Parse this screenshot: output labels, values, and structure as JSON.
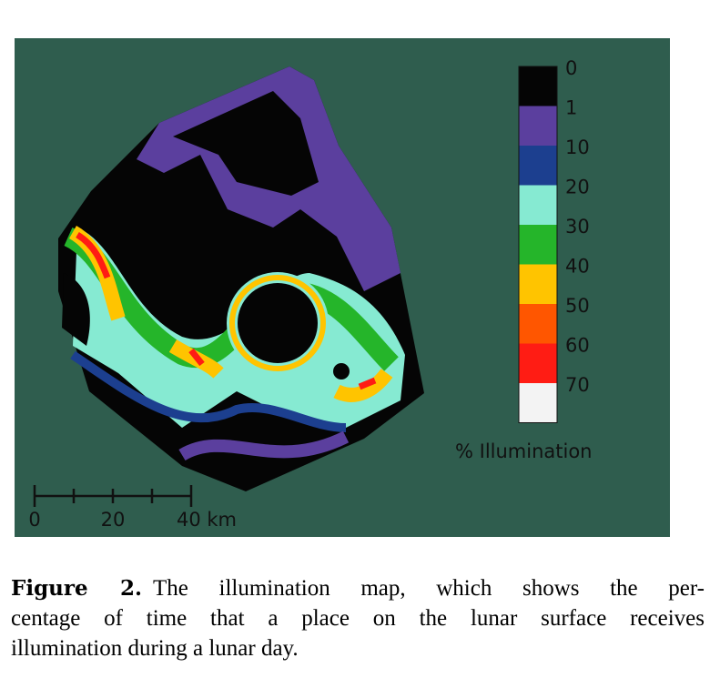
{
  "figure": {
    "colorbar": [
      {
        "label": "0",
        "color": "#050505"
      },
      {
        "label": "1",
        "color": "#5b3f9e"
      },
      {
        "label": "10",
        "color": "#1c3f8f"
      },
      {
        "label": "20",
        "color": "#86ead2"
      },
      {
        "label": "30",
        "color": "#25b52a"
      },
      {
        "label": "40",
        "color": "#ffc400"
      },
      {
        "label": "50",
        "color": "#ff5600"
      },
      {
        "label": "60",
        "color": "#ff1c14"
      },
      {
        "label": "70",
        "color": "#f3f3f3"
      }
    ],
    "colorbar_title": "% Illumination",
    "scale_labels": [
      "0",
      "20",
      "40 km"
    ]
  },
  "caption": {
    "label": "Figure 2.",
    "lines": [
      "The illumination map, which shows the per-",
      "centage of time that a place on the lunar surface receives",
      "illumination during a lunar day."
    ]
  }
}
